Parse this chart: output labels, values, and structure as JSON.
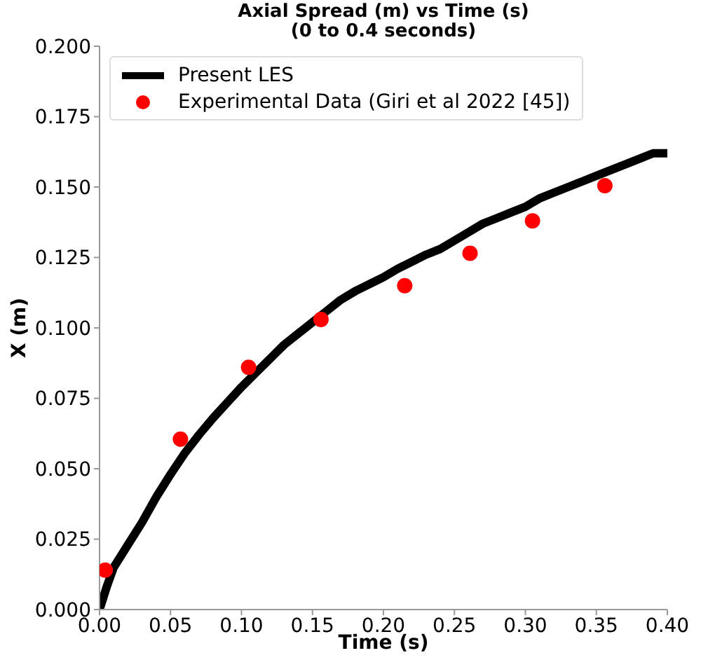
{
  "chart_data": {
    "type": "line",
    "title": "Axial Spread (m) vs Time (s)",
    "subtitle": "(0 to 0.4 seconds)",
    "xlabel": "Time (s)",
    "ylabel": "X (m)",
    "xlim": [
      0,
      0.4
    ],
    "ylim": [
      0,
      0.2
    ],
    "xticks": [
      {
        "value": 0,
        "label": "0.00"
      },
      {
        "value": 0.05,
        "label": "0.05"
      },
      {
        "value": 0.1,
        "label": "0.10"
      },
      {
        "value": 0.15,
        "label": "0.15"
      },
      {
        "value": 0.2,
        "label": "0.20"
      },
      {
        "value": 0.25,
        "label": "0.25"
      },
      {
        "value": 0.3,
        "label": "0.30"
      },
      {
        "value": 0.35,
        "label": "0.35"
      },
      {
        "value": 0.4,
        "label": "0.40"
      }
    ],
    "yticks": [
      {
        "value": 0,
        "label": "0.000"
      },
      {
        "value": 0.025,
        "label": "0.025"
      },
      {
        "value": 0.05,
        "label": "0.050"
      },
      {
        "value": 0.075,
        "label": "0.075"
      },
      {
        "value": 0.1,
        "label": "0.100"
      },
      {
        "value": 0.125,
        "label": "0.125"
      },
      {
        "value": 0.15,
        "label": "0.150"
      },
      {
        "value": 0.175,
        "label": "0.175"
      },
      {
        "value": 0.2,
        "label": "0.200"
      }
    ],
    "grid": false,
    "legend": "top left",
    "series": [
      {
        "name": "Present LES",
        "color": "#000000",
        "marker": "none",
        "line_style": "solid",
        "x": [
          0,
          0.005,
          0.01,
          0.02,
          0.03,
          0.04,
          0.05,
          0.06,
          0.07,
          0.08,
          0.09,
          0.1,
          0.11,
          0.12,
          0.13,
          0.14,
          0.15,
          0.16,
          0.17,
          0.18,
          0.19,
          0.2,
          0.21,
          0.22,
          0.23,
          0.24,
          0.25,
          0.26,
          0.27,
          0.28,
          0.29,
          0.3,
          0.31,
          0.32,
          0.33,
          0.34,
          0.35,
          0.36,
          0.37,
          0.38,
          0.39,
          0.4
        ],
        "values": [
          0,
          0.008,
          0.015,
          0.023,
          0.031,
          0.04,
          0.048,
          0.0555,
          0.062,
          0.068,
          0.0735,
          0.079,
          0.084,
          0.089,
          0.094,
          0.098,
          0.102,
          0.106,
          0.11,
          0.113,
          0.1155,
          0.118,
          0.121,
          0.1235,
          0.126,
          0.128,
          0.131,
          0.134,
          0.137,
          0.139,
          0.141,
          0.143,
          0.146,
          0.148,
          0.15,
          0.152,
          0.154,
          0.156,
          0.158,
          0.16,
          0.162,
          0.162
        ]
      },
      {
        "name": "Experimental Data (Giri et al 2022 [45])",
        "type": "scatter",
        "color": "#ff0000",
        "marker": "circle",
        "x": [
          0.004,
          0.057,
          0.105,
          0.156,
          0.215,
          0.261,
          0.305,
          0.356
        ],
        "values": [
          0.014,
          0.0605,
          0.086,
          0.103,
          0.115,
          0.1265,
          0.138,
          0.1505
        ]
      }
    ]
  }
}
